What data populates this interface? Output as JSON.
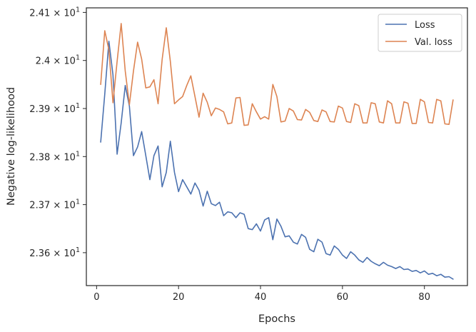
{
  "chart_data": {
    "type": "line",
    "xlabel": "Epochs",
    "ylabel": "Negative log-likelihood",
    "xlim": [
      -2.5,
      90.5
    ],
    "ylim": [
      23.5315,
      24.1095
    ],
    "xticks": [
      0,
      20,
      40,
      60,
      80
    ],
    "xtick_labels": [
      "0",
      "20",
      "40",
      "60",
      "80"
    ],
    "yticks": [
      23.6,
      23.7,
      23.8,
      23.9,
      24.0,
      24.1
    ],
    "ytick_labels": [
      {
        "mantissa": "2.36",
        "exponent": "1"
      },
      {
        "mantissa": "2.37",
        "exponent": "1"
      },
      {
        "mantissa": "2.38",
        "exponent": "1"
      },
      {
        "mantissa": "2.39",
        "exponent": "1"
      },
      {
        "mantissa": "2.4",
        "exponent": "1"
      },
      {
        "mantissa": "2.41",
        "exponent": "1"
      }
    ],
    "times": "×",
    "base": "10",
    "legend_position": "upper-right",
    "grid": false,
    "series": [
      {
        "name": "Loss",
        "color": "#4c72b0",
        "x": [
          1,
          2,
          3,
          4,
          5,
          6,
          7,
          8,
          9,
          10,
          11,
          12,
          13,
          14,
          15,
          16,
          17,
          18,
          19,
          20,
          21,
          22,
          23,
          24,
          25,
          26,
          27,
          28,
          29,
          30,
          31,
          32,
          33,
          34,
          35,
          36,
          37,
          38,
          39,
          40,
          41,
          42,
          43,
          44,
          45,
          46,
          47,
          48,
          49,
          50,
          51,
          52,
          53,
          54,
          55,
          56,
          57,
          58,
          59,
          60,
          61,
          62,
          63,
          64,
          65,
          66,
          67,
          68,
          69,
          70,
          71,
          72,
          73,
          74,
          75,
          76,
          77,
          78,
          79,
          80,
          81,
          82,
          83,
          84,
          85,
          86,
          87
        ],
        "y": [
          23.83,
          23.93,
          24.04,
          23.97,
          23.805,
          23.87,
          23.948,
          23.905,
          23.802,
          23.82,
          23.852,
          23.802,
          23.752,
          23.802,
          23.822,
          23.737,
          23.767,
          23.832,
          23.767,
          23.727,
          23.752,
          23.737,
          23.722,
          23.745,
          23.73,
          23.697,
          23.728,
          23.702,
          23.698,
          23.705,
          23.677,
          23.685,
          23.683,
          23.673,
          23.683,
          23.68,
          23.65,
          23.648,
          23.66,
          23.645,
          23.668,
          23.673,
          23.627,
          23.67,
          23.655,
          23.633,
          23.635,
          23.622,
          23.618,
          23.638,
          23.632,
          23.607,
          23.602,
          23.628,
          23.622,
          23.598,
          23.595,
          23.614,
          23.607,
          23.595,
          23.588,
          23.602,
          23.595,
          23.585,
          23.58,
          23.59,
          23.582,
          23.577,
          23.573,
          23.58,
          23.574,
          23.571,
          23.567,
          23.571,
          23.565,
          23.566,
          23.561,
          23.563,
          23.558,
          23.562,
          23.555,
          23.557,
          23.552,
          23.555,
          23.549,
          23.55,
          23.545
        ]
      },
      {
        "name": "Val. loss",
        "color": "#dd8452",
        "x": [
          1,
          2,
          3,
          4,
          5,
          6,
          7,
          8,
          9,
          10,
          11,
          12,
          13,
          14,
          15,
          16,
          17,
          18,
          19,
          20,
          21,
          22,
          23,
          24,
          25,
          26,
          27,
          28,
          29,
          30,
          31,
          32,
          33,
          34,
          35,
          36,
          37,
          38,
          39,
          40,
          41,
          42,
          43,
          44,
          45,
          46,
          47,
          48,
          49,
          50,
          51,
          52,
          53,
          54,
          55,
          56,
          57,
          58,
          59,
          60,
          61,
          62,
          63,
          64,
          65,
          66,
          67,
          68,
          69,
          70,
          71,
          72,
          73,
          74,
          75,
          76,
          77,
          78,
          79,
          80,
          81,
          82,
          83,
          84,
          85,
          86,
          87
        ],
        "y": [
          23.95,
          24.062,
          24.022,
          23.912,
          23.998,
          24.077,
          23.978,
          23.908,
          23.978,
          24.038,
          24.003,
          23.943,
          23.945,
          23.96,
          23.91,
          24.002,
          24.068,
          23.998,
          23.91,
          23.918,
          23.925,
          23.948,
          23.968,
          23.925,
          23.882,
          23.932,
          23.913,
          23.885,
          23.901,
          23.898,
          23.893,
          23.868,
          23.87,
          23.922,
          23.923,
          23.865,
          23.866,
          23.91,
          23.893,
          23.878,
          23.883,
          23.878,
          23.95,
          23.925,
          23.872,
          23.874,
          23.9,
          23.895,
          23.877,
          23.876,
          23.898,
          23.892,
          23.875,
          23.873,
          23.897,
          23.893,
          23.873,
          23.872,
          23.905,
          23.901,
          23.873,
          23.871,
          23.91,
          23.906,
          23.87,
          23.87,
          23.912,
          23.91,
          23.872,
          23.87,
          23.916,
          23.91,
          23.87,
          23.87,
          23.914,
          23.911,
          23.869,
          23.869,
          23.919,
          23.914,
          23.871,
          23.87,
          23.919,
          23.916,
          23.868,
          23.867,
          23.918
        ]
      }
    ]
  }
}
